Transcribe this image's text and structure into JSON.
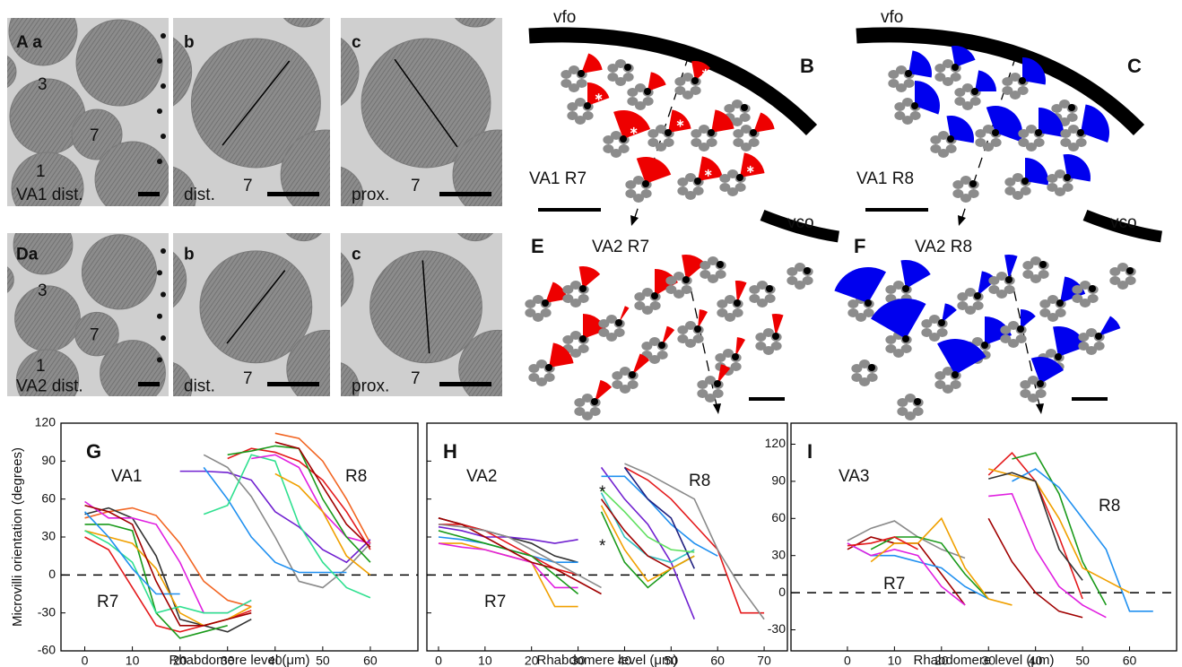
{
  "em_panels": [
    {
      "labels": [
        "A a",
        "3",
        "7",
        "1",
        "VA1 dist."
      ]
    },
    {
      "labels": [
        "b",
        "dist.",
        "7"
      ]
    },
    {
      "labels": [
        "c",
        "prox.",
        "7"
      ]
    },
    {
      "labels": [
        "Da",
        "3",
        "7",
        "1",
        "VA2 dist."
      ]
    },
    {
      "labels": [
        "b",
        "dist.",
        "7"
      ]
    },
    {
      "labels": [
        "c",
        "prox.",
        "7"
      ]
    }
  ],
  "diagrams": [
    {
      "letter": "B",
      "title": "VA1 R7",
      "label": "vfo"
    },
    {
      "letter": "C",
      "title": "VA1 R8",
      "label": "vfo"
    },
    {
      "letter": "E",
      "title": "VA2 R7",
      "label": "vco"
    },
    {
      "letter": "F",
      "title": "VA2 R8",
      "label": "vco"
    }
  ],
  "chart_data": [
    {
      "type": "line",
      "panel_letter": "G",
      "group_label": "VA1",
      "r7_label": "R7",
      "r8_label": "R8",
      "xlabel": "Rhabdomere level (μm)",
      "ylabel": "Microvilli orientation (degrees)",
      "xlim": [
        -5,
        70
      ],
      "ylim": [
        -60,
        120
      ],
      "xticks": [
        0,
        10,
        20,
        30,
        40,
        50,
        60
      ],
      "yticks": [
        -60,
        -30,
        0,
        30,
        60,
        90,
        120
      ],
      "ytick_labels": true,
      "reference_line": 0,
      "series": [
        {
          "color": "#f26522",
          "x": [
            0,
            5,
            10,
            15,
            20,
            25,
            30,
            35
          ],
          "values": [
            45,
            50,
            53,
            47,
            25,
            -5,
            -20,
            -25
          ]
        },
        {
          "color": "#e41a1c",
          "x": [
            0,
            5,
            10,
            15,
            20,
            25,
            30,
            35
          ],
          "values": [
            30,
            20,
            -10,
            -40,
            -45,
            -40,
            -35,
            -28
          ]
        },
        {
          "color": "#333333",
          "x": [
            0,
            5,
            10,
            15,
            20,
            25,
            30,
            35
          ],
          "values": [
            48,
            53,
            45,
            15,
            -35,
            -40,
            -45,
            -35
          ]
        },
        {
          "color": "#1a9a1a",
          "x": [
            0,
            5,
            10,
            15,
            20,
            25,
            30
          ],
          "values": [
            40,
            40,
            35,
            -30,
            -50,
            -45,
            -40
          ]
        },
        {
          "color": "#e020e0",
          "x": [
            0,
            5,
            10,
            15,
            20,
            25,
            30,
            35
          ],
          "values": [
            58,
            45,
            45,
            40,
            10,
            -30,
            -30,
            -20
          ]
        },
        {
          "color": "#f0a000",
          "x": [
            0,
            5,
            10,
            15,
            20,
            25,
            30,
            35
          ],
          "values": [
            35,
            30,
            25,
            5,
            -30,
            -40,
            -35,
            -25
          ]
        },
        {
          "color": "#30e090",
          "x": [
            0,
            5,
            10,
            15,
            20,
            25,
            30,
            35
          ],
          "values": [
            35,
            25,
            10,
            -30,
            -25,
            -30,
            -30,
            -20
          ]
        },
        {
          "color": "#2090f0",
          "x": [
            0,
            5,
            10,
            15,
            20
          ],
          "values": [
            50,
            30,
            5,
            -15,
            -15
          ]
        },
        {
          "color": "#a00000",
          "x": [
            0,
            5,
            10,
            15,
            20,
            25,
            30,
            35
          ],
          "values": [
            55,
            50,
            40,
            -5,
            -40,
            -40,
            -35,
            -30
          ]
        },
        {
          "color": "#f26522",
          "x": [
            40,
            45,
            50,
            55,
            60
          ],
          "values": [
            112,
            108,
            90,
            60,
            25
          ]
        },
        {
          "color": "#e41a1c",
          "x": [
            30,
            35,
            40,
            45,
            50,
            55,
            60
          ],
          "values": [
            92,
            100,
            97,
            90,
            75,
            50,
            20
          ]
        },
        {
          "color": "#7020d0",
          "x": [
            20,
            25,
            30,
            35,
            40,
            45,
            50,
            55,
            60
          ],
          "values": [
            82,
            82,
            81,
            75,
            50,
            38,
            20,
            10,
            28
          ]
        },
        {
          "color": "#8a8a8a",
          "x": [
            25,
            30,
            35,
            40,
            45,
            50,
            55,
            60
          ],
          "values": [
            95,
            85,
            62,
            30,
            -5,
            -10,
            5,
            25
          ]
        },
        {
          "color": "#2090f0",
          "x": [
            25,
            30,
            35,
            40,
            45,
            50,
            55
          ],
          "values": [
            85,
            60,
            30,
            10,
            2,
            2,
            2
          ]
        },
        {
          "color": "#30e090",
          "x": [
            25,
            30,
            35,
            40,
            45,
            50,
            55,
            60
          ],
          "values": [
            48,
            55,
            95,
            90,
            40,
            10,
            -10,
            -18
          ]
        },
        {
          "color": "#e020e0",
          "x": [
            35,
            40,
            45,
            50,
            55,
            60
          ],
          "values": [
            92,
            95,
            85,
            50,
            30,
            25
          ]
        },
        {
          "color": "#f0a000",
          "x": [
            40,
            45,
            50,
            55,
            60
          ],
          "values": [
            80,
            70,
            50,
            15,
            0
          ]
        },
        {
          "color": "#1a9a1a",
          "x": [
            30,
            35,
            40,
            45,
            50,
            55,
            60
          ],
          "values": [
            95,
            98,
            102,
            100,
            60,
            30,
            10
          ]
        },
        {
          "color": "#a00000",
          "x": [
            40,
            45,
            50,
            55,
            60
          ],
          "values": [
            105,
            100,
            70,
            40,
            22
          ]
        }
      ]
    },
    {
      "type": "line",
      "panel_letter": "H",
      "group_label": "VA2",
      "r7_label": "R7",
      "r8_label": "R8",
      "xlabel": "Rhabdomere level (μm)",
      "markers": [
        "*",
        "*"
      ],
      "xlim": [
        -2.5,
        75
      ],
      "ylim": [
        -60,
        120
      ],
      "xticks": [
        0,
        10,
        20,
        30,
        40,
        50,
        60,
        70
      ],
      "yticks": [
        -60,
        -30,
        0,
        30,
        60,
        90,
        120
      ],
      "ytick_labels": false,
      "reference_line": 0,
      "series": [
        {
          "color": "#333333",
          "x": [
            0,
            5,
            10,
            15,
            20,
            25,
            30
          ],
          "values": [
            45,
            40,
            35,
            30,
            25,
            15,
            10
          ]
        },
        {
          "color": "#7020d0",
          "x": [
            0,
            5,
            10,
            15,
            20,
            25,
            30
          ],
          "values": [
            38,
            35,
            30,
            30,
            28,
            25,
            28
          ]
        },
        {
          "color": "#2090f0",
          "x": [
            0,
            5,
            10,
            15,
            20,
            25,
            30
          ],
          "values": [
            30,
            28,
            25,
            20,
            15,
            10,
            10
          ]
        },
        {
          "color": "#f0a000",
          "x": [
            0,
            5,
            10,
            15,
            20,
            25,
            30
          ],
          "values": [
            25,
            25,
            20,
            15,
            10,
            -25,
            -25
          ]
        },
        {
          "color": "#e41a1c",
          "x": [
            0,
            5,
            10,
            15,
            20,
            25,
            30
          ],
          "values": [
            40,
            40,
            35,
            25,
            15,
            5,
            0
          ]
        },
        {
          "color": "#e020e0",
          "x": [
            0,
            5,
            10,
            15,
            20,
            25,
            30
          ],
          "values": [
            25,
            22,
            20,
            15,
            10,
            -10,
            -10
          ]
        },
        {
          "color": "#1a9a1a",
          "x": [
            0,
            5,
            10,
            15,
            20,
            25,
            30
          ],
          "values": [
            35,
            30,
            25,
            20,
            15,
            0,
            -15
          ]
        },
        {
          "color": "#a00000",
          "x": [
            0,
            5,
            10,
            15,
            20,
            25,
            30,
            35
          ],
          "values": [
            45,
            40,
            30,
            20,
            10,
            5,
            -5,
            -15
          ]
        },
        {
          "color": "#8a8a8a",
          "x": [
            0,
            5,
            10,
            15,
            20,
            25,
            30,
            35
          ],
          "values": [
            40,
            38,
            35,
            30,
            20,
            10,
            0,
            -10
          ]
        },
        {
          "color": "#e41a1c",
          "x": [
            40,
            45,
            50,
            55,
            60,
            65,
            70
          ],
          "values": [
            85,
            75,
            60,
            40,
            20,
            -30,
            -30
          ]
        },
        {
          "color": "#8a8a8a",
          "x": [
            40,
            45,
            50,
            55,
            60,
            65,
            70
          ],
          "values": [
            88,
            80,
            70,
            60,
            20,
            -10,
            -35
          ]
        },
        {
          "color": "#7020d0",
          "x": [
            35,
            40,
            45,
            50,
            55
          ],
          "values": [
            85,
            60,
            40,
            10,
            -35
          ]
        },
        {
          "color": "#2090f0",
          "x": [
            35,
            40,
            45,
            50,
            55,
            60
          ],
          "values": [
            78,
            78,
            60,
            40,
            25,
            15
          ]
        },
        {
          "color": "#1a9a1a",
          "x": [
            35,
            40,
            45,
            50,
            55
          ],
          "values": [
            50,
            10,
            -10,
            5,
            15
          ]
        },
        {
          "color": "#30c0c0",
          "x": [
            35,
            40,
            45,
            50,
            55
          ],
          "values": [
            65,
            30,
            15,
            10,
            20
          ]
        },
        {
          "color": "#f0a000",
          "x": [
            35,
            40,
            45,
            50,
            55
          ],
          "values": [
            55,
            20,
            -5,
            5,
            15
          ]
        },
        {
          "color": "#a00000",
          "x": [
            35,
            40,
            45,
            50
          ],
          "values": [
            60,
            35,
            15,
            5
          ]
        },
        {
          "color": "#202080",
          "x": [
            40,
            45,
            50,
            55
          ],
          "values": [
            85,
            60,
            45,
            5
          ]
        },
        {
          "color": "#60e060",
          "x": [
            35,
            40,
            45,
            50,
            55
          ],
          "values": [
            68,
            50,
            30,
            20,
            18
          ]
        }
      ]
    },
    {
      "type": "line",
      "panel_letter": "I",
      "group_label": "VA3",
      "r7_label": "R7",
      "r8_label": "R8",
      "xlabel": "Rhabdomere level (μm)",
      "xlim": [
        -12,
        70
      ],
      "ylim": [
        -47,
        137
      ],
      "xticks": [
        0,
        10,
        20,
        30,
        40,
        50,
        60
      ],
      "yticks": [
        -30,
        0,
        30,
        60,
        90,
        120
      ],
      "ytick_labels": true,
      "reference_line": 0,
      "series": [
        {
          "color": "#8a8a8a",
          "x": [
            0,
            5,
            10,
            15,
            20,
            25
          ],
          "values": [
            42,
            52,
            58,
            45,
            35,
            28
          ]
        },
        {
          "color": "#a00000",
          "x": [
            0,
            5,
            10,
            15,
            20,
            25
          ],
          "values": [
            35,
            45,
            40,
            40,
            15,
            -10
          ]
        },
        {
          "color": "#2090f0",
          "x": [
            0,
            5,
            10,
            15,
            20,
            25,
            30
          ],
          "values": [
            40,
            30,
            30,
            25,
            20,
            5,
            -5
          ]
        },
        {
          "color": "#1a9a1a",
          "x": [
            5,
            10,
            15,
            20,
            25,
            30
          ],
          "values": [
            35,
            45,
            45,
            40,
            15,
            -5
          ]
        },
        {
          "color": "#e020e0",
          "x": [
            0,
            5,
            10,
            15,
            20,
            25
          ],
          "values": [
            40,
            30,
            35,
            30,
            5,
            -10
          ]
        },
        {
          "color": "#f0a000",
          "x": [
            5,
            10,
            15,
            20,
            25,
            30,
            35
          ],
          "values": [
            25,
            40,
            40,
            60,
            20,
            -5,
            -10
          ]
        },
        {
          "color": "#e41a1c",
          "x": [
            0,
            5,
            10,
            15
          ],
          "values": [
            38,
            40,
            45,
            35
          ]
        },
        {
          "color": "#e41a1c",
          "x": [
            30,
            35,
            40,
            45,
            50
          ],
          "values": [
            95,
            113,
            90,
            45,
            -5
          ]
        },
        {
          "color": "#1a9a1a",
          "x": [
            35,
            40,
            45,
            50,
            55
          ],
          "values": [
            108,
            113,
            80,
            25,
            -10
          ]
        },
        {
          "color": "#2090f0",
          "x": [
            35,
            40,
            45,
            50,
            55,
            60,
            65
          ],
          "values": [
            90,
            100,
            85,
            60,
            35,
            -15,
            -15
          ]
        },
        {
          "color": "#f0a000",
          "x": [
            30,
            35,
            40,
            45,
            50,
            55,
            60
          ],
          "values": [
            100,
            95,
            90,
            60,
            20,
            10,
            0
          ]
        },
        {
          "color": "#333333",
          "x": [
            30,
            35,
            40,
            45,
            50
          ],
          "values": [
            92,
            97,
            90,
            35,
            10
          ]
        },
        {
          "color": "#e020e0",
          "x": [
            30,
            35,
            40,
            45,
            50,
            55
          ],
          "values": [
            78,
            80,
            35,
            5,
            -10,
            -20
          ]
        },
        {
          "color": "#a00000",
          "x": [
            30,
            35,
            40,
            45,
            50
          ],
          "values": [
            60,
            25,
            0,
            -15,
            -20
          ]
        }
      ]
    }
  ]
}
